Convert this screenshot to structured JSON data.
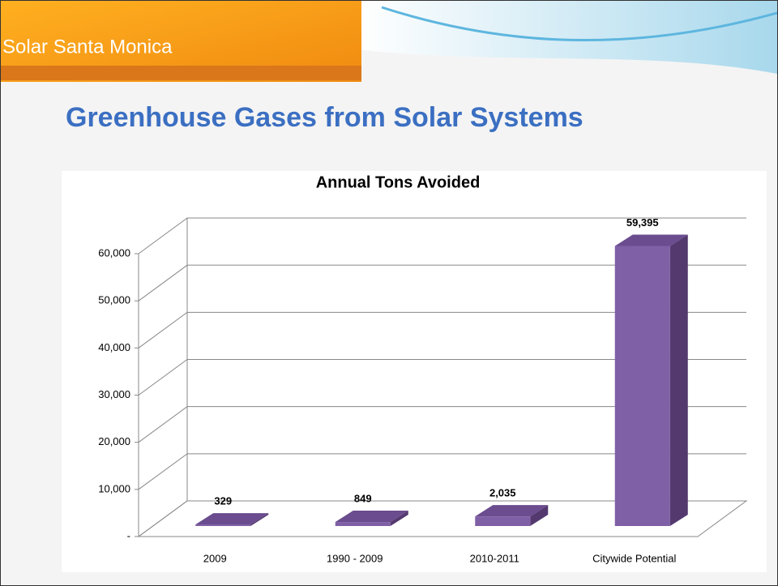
{
  "brand": "Solar Santa Monica",
  "slide_title": "Greenhouse Gases from Solar Systems",
  "chart_data": {
    "type": "bar3d",
    "title": "Annual Tons Avoided",
    "categories": [
      "2009",
      "1990 - 2009",
      "2010-2011",
      "Citywide Potential"
    ],
    "values": [
      329,
      849,
      2035,
      59395
    ],
    "value_labels": [
      "329",
      "849",
      "2,035",
      "59,395"
    ],
    "color": "#7f5fa5",
    "ylim": [
      0,
      60000
    ],
    "yticks": [
      {
        "value": 0,
        "label": "-"
      },
      {
        "value": 10000,
        "label": "10,000"
      },
      {
        "value": 20000,
        "label": "20,000"
      },
      {
        "value": 30000,
        "label": "30,000"
      },
      {
        "value": 40000,
        "label": "40,000"
      },
      {
        "value": 50000,
        "label": "50,000"
      },
      {
        "value": 60000,
        "label": "60,000"
      }
    ],
    "grid": true
  }
}
